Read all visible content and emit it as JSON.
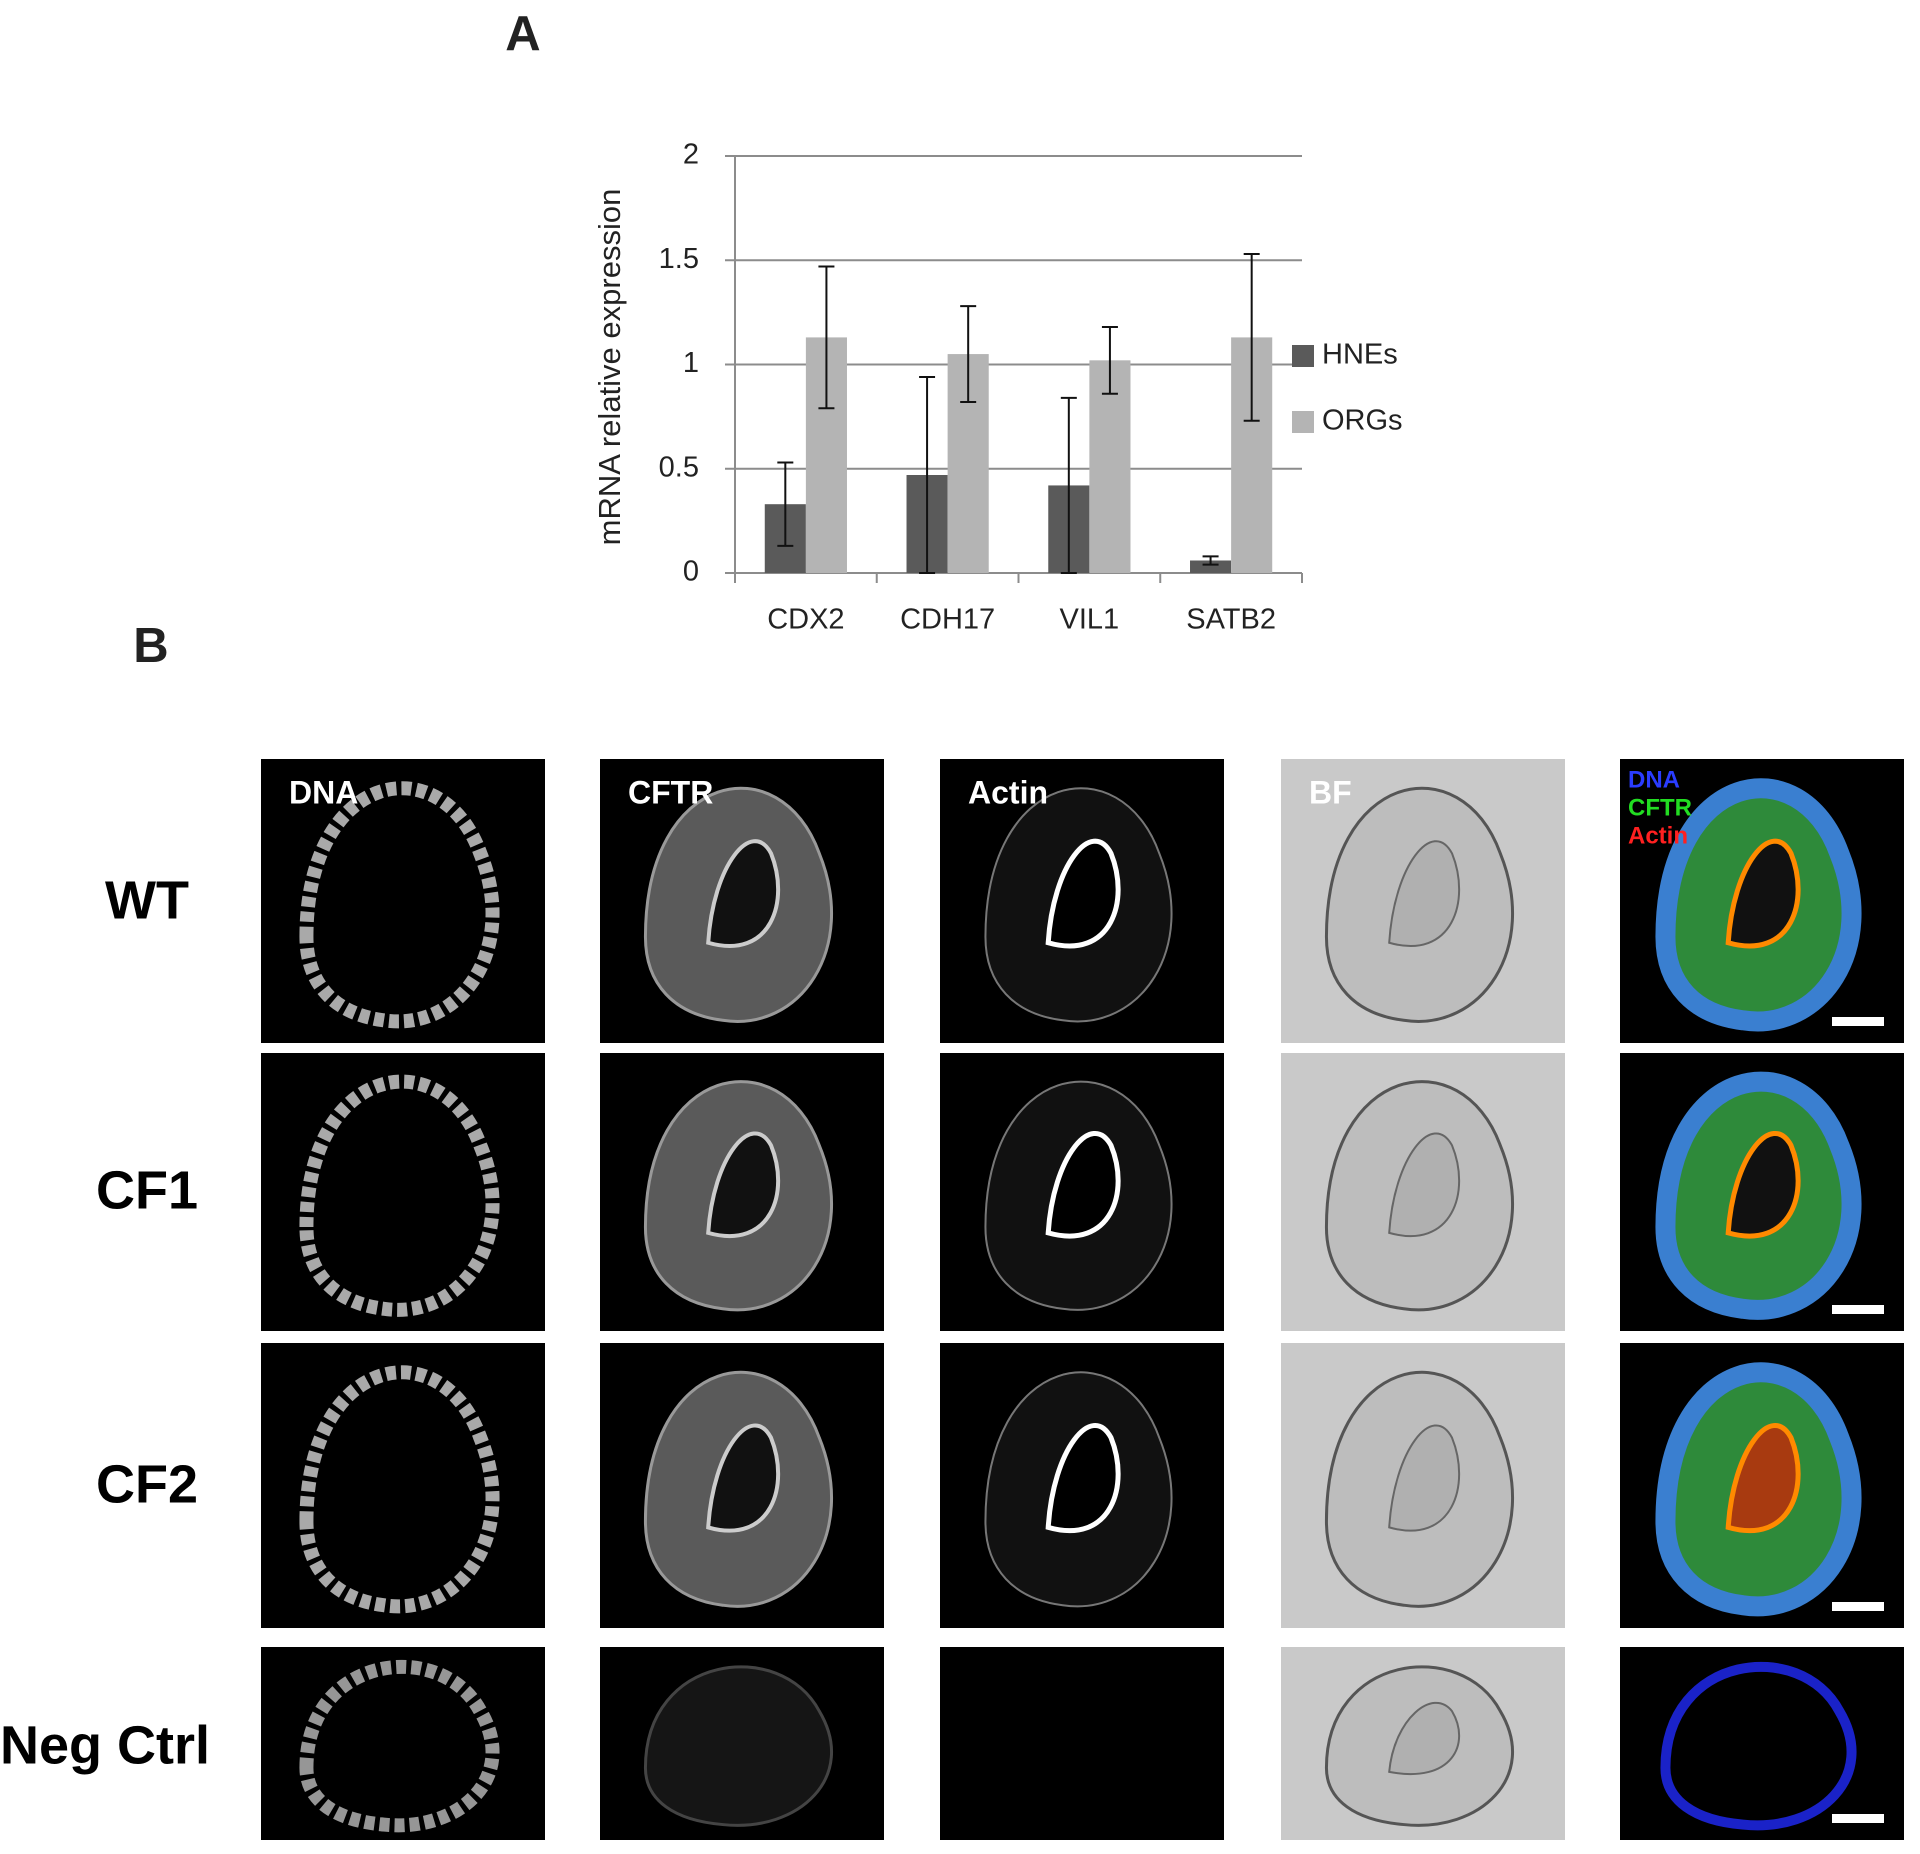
{
  "panel_labels": [
    "A",
    "B"
  ],
  "chart_data": {
    "type": "bar",
    "ylabel": "mRNA relative expression",
    "categories": [
      "CDX2",
      "CDH17",
      "VIL1",
      "SATB2"
    ],
    "series": [
      {
        "name": "HNEs",
        "color": "#5a5a5a",
        "values": [
          0.33,
          0.47,
          0.42,
          0.06
        ],
        "errors": [
          0.2,
          0.47,
          0.42,
          0.02
        ]
      },
      {
        "name": "ORGs",
        "color": "#b4b4b4",
        "values": [
          1.13,
          1.05,
          1.02,
          1.13
        ],
        "errors": [
          0.34,
          0.23,
          0.16,
          0.4
        ]
      }
    ],
    "ylim": [
      0,
      2
    ],
    "yticks": [
      0,
      0.5,
      1,
      1.5,
      2
    ],
    "grid": true,
    "legend": "right"
  },
  "micrograph_grid": {
    "rows": [
      "WT",
      "CF1",
      "CF2",
      "Neg Ctrl"
    ],
    "channels": [
      "DNA",
      "CFTR",
      "Actin",
      "BF"
    ],
    "merge_channels": [
      {
        "name": "DNA",
        "color": "#2a3cff"
      },
      {
        "name": "CFTR",
        "color": "#22dd22"
      },
      {
        "name": "Actin",
        "color": "#ff2020"
      }
    ]
  }
}
